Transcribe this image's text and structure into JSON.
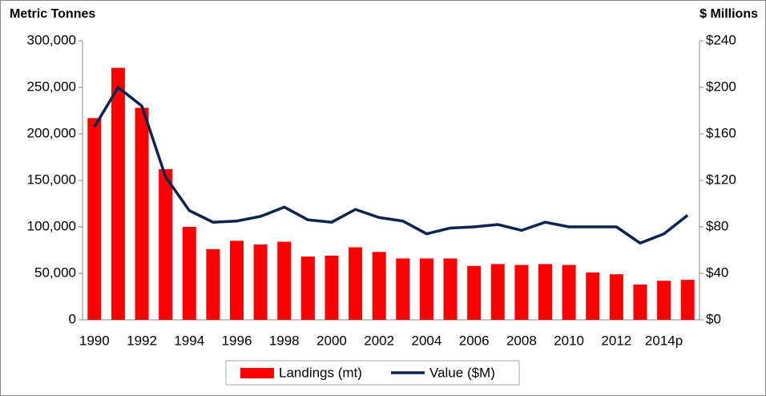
{
  "chart_data": {
    "type": "bar_line",
    "y_axis_label": "Metric Tonnes",
    "y2_axis_label": "$ Millions",
    "categories": [
      "1990",
      null,
      "1992",
      null,
      "1994",
      null,
      "1996",
      null,
      "1998",
      null,
      "2000",
      null,
      "2002",
      null,
      "2004",
      null,
      "2006",
      null,
      "2008",
      null,
      "2010",
      null,
      "2012",
      null,
      "2014p",
      null
    ],
    "series": [
      {
        "name": "Landings (mt)",
        "type": "bar",
        "color": "#ff0000",
        "axis": "y",
        "values": [
          217000,
          271000,
          228000,
          162000,
          100000,
          76000,
          85000,
          81000,
          84000,
          68000,
          69000,
          78000,
          73000,
          66000,
          66000,
          66000,
          58000,
          60000,
          59000,
          60000,
          59000,
          51000,
          49000,
          38000,
          42000,
          43000
        ]
      },
      {
        "name": "Value ($M)",
        "type": "line",
        "color": "#0d2350",
        "axis": "y2",
        "values": [
          166,
          200,
          184,
          123,
          94,
          84,
          85,
          89,
          97,
          86,
          84,
          95,
          88,
          85,
          74,
          79,
          80,
          82,
          77,
          84,
          80,
          80,
          80,
          66,
          74,
          90
        ]
      }
    ],
    "ylim": [
      0,
      300000
    ],
    "yticks": [
      0,
      {
        "value": 50000,
        "label": "50,000"
      },
      {
        "value": 100000,
        "label": "100,000"
      },
      {
        "value": 150000,
        "label": "150,000"
      },
      {
        "value": 200000,
        "label": "200,000"
      },
      {
        "value": 250000,
        "label": "250,000"
      },
      {
        "value": 300000,
        "label": "300,000"
      }
    ],
    "y2lim": [
      0,
      240
    ],
    "y2ticks": [
      {
        "value": 0,
        "label": "$0"
      },
      {
        "value": 40,
        "label": "$40"
      },
      {
        "value": 80,
        "label": "$80"
      },
      {
        "value": 120,
        "label": "$120"
      },
      {
        "value": 160,
        "label": "$160"
      },
      {
        "value": 200,
        "label": "$200"
      },
      {
        "value": 240,
        "label": "$240"
      }
    ],
    "grid": false,
    "legend": "bottom"
  }
}
